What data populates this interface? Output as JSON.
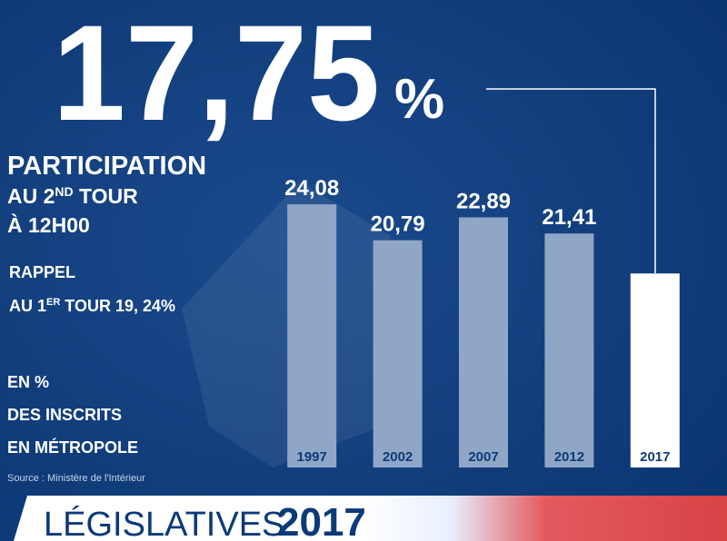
{
  "chart_data": {
    "type": "bar",
    "categories": [
      "1997",
      "2002",
      "2007",
      "2012",
      "2017"
    ],
    "values": [
      24.08,
      20.79,
      22.89,
      21.41,
      17.75
    ],
    "value_labels": [
      "24,08",
      "20,79",
      "22,89",
      "21,41",
      "17,75"
    ],
    "colors": [
      "#8fa6c6",
      "#8fa6c6",
      "#8fa6c6",
      "#8fa6c6",
      "#ffffff"
    ],
    "ylim": [
      0,
      40
    ],
    "headline_unit": "%"
  },
  "text": {
    "participation": "PARTICIPATION",
    "tour_line": [
      "AU 2",
      "ND",
      " TOUR"
    ],
    "time": "À 12H00",
    "rappel": "RAPPEL",
    "first_tour": [
      "AU 1",
      "ER",
      " TOUR 19, 24%"
    ],
    "units": [
      "EN %",
      "DES INSCRITS",
      "EN MÉTROPOLE"
    ],
    "source": "Source : Ministère de l'Intérieur",
    "banner": [
      "LÉGISLATIVES",
      "2017"
    ]
  }
}
